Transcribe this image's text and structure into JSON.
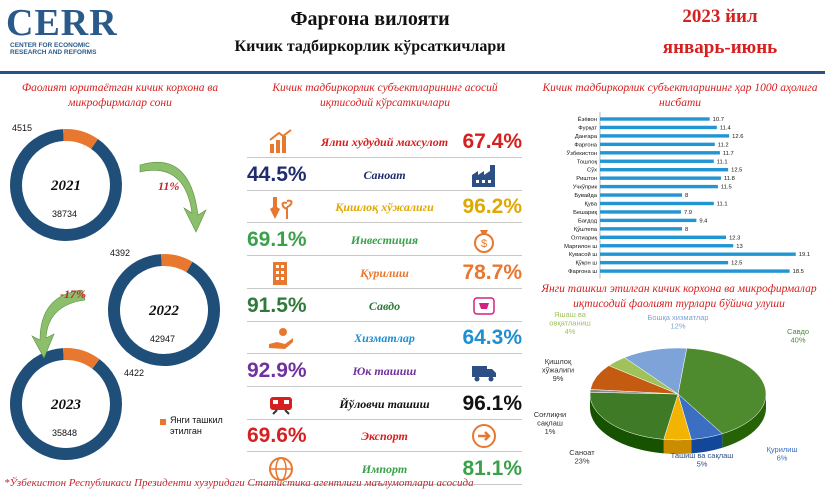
{
  "header": {
    "logo_word": "CERR",
    "logo_sub_lines": [
      "CENTER FOR ECONOMIC",
      "RESEARCH AND REFORMS"
    ],
    "title": "Фарғона вилояти",
    "subtitle": "Кичик тадбиркорлик кўрсаткичлари",
    "year": "2023 йил",
    "period": "январь-июнь"
  },
  "left_panel": {
    "title": "Фаолият юритаётган кичик корхона ва микрофирмалар сони",
    "legend_label": "Янги ташкил этилган",
    "colors": {
      "ring": "#1f4e79",
      "new": "#e8782f"
    }
  },
  "middle_panel": {
    "title": "Кичик тадбиркорлик субъектларининг асосий иқтисодий кўрсаткичлари",
    "rows": [
      {
        "left_value": "",
        "name": "Ялпи худудий махсулот",
        "right_value": "67.4%",
        "name_color": "#d62020",
        "value_color": "#d62020",
        "left_icon": "bar-growth-icon",
        "right_icon": ""
      },
      {
        "left_value": "44.5%",
        "name": "Саноат",
        "right_value": "",
        "name_color": "#1f2d6e",
        "value_color": "#1f2d6e",
        "left_icon": "",
        "right_icon": "factory-icon"
      },
      {
        "left_value": "",
        "name": "Қишлоқ хўжалиги",
        "right_value": "96.2%",
        "name_color": "#e0a800",
        "value_color": "#e0a800",
        "left_icon": "shovel-plant-icon",
        "right_icon": ""
      },
      {
        "left_value": "69.1%",
        "name": "Инвестиция",
        "right_value": "",
        "name_color": "#3aa14a",
        "value_color": "#3aa14a",
        "left_icon": "",
        "right_icon": "money-bag-icon"
      },
      {
        "left_value": "",
        "name": "Қурилиш",
        "right_value": "78.7%",
        "name_color": "#e8782f",
        "value_color": "#e8782f",
        "left_icon": "building-icon",
        "right_icon": ""
      },
      {
        "left_value": "91.5%",
        "name": "Савдо",
        "right_value": "",
        "name_color": "#2f7a3a",
        "value_color": "#2f7a3a",
        "left_icon": "",
        "right_icon": "cart-icon"
      },
      {
        "left_value": "",
        "name": "Хизматлар",
        "right_value": "64.3%",
        "name_color": "#1f8fd0",
        "value_color": "#1f8fd0",
        "left_icon": "service-hand-icon",
        "right_icon": ""
      },
      {
        "left_value": "92.9%",
        "name": "Юк ташиш",
        "right_value": "",
        "name_color": "#7030a0",
        "value_color": "#7030a0",
        "left_icon": "",
        "right_icon": "truck-icon"
      },
      {
        "left_value": "",
        "name": "Йўловчи ташиш",
        "right_value": "96.1%",
        "name_color": "#111111",
        "value_color": "#111111",
        "left_icon": "train-icon",
        "right_icon": ""
      },
      {
        "left_value": "69.6%",
        "name": "Экспорт",
        "right_value": "",
        "name_color": "#d62020",
        "value_color": "#d62020",
        "left_icon": "",
        "right_icon": "export-arrow-icon"
      },
      {
        "left_value": "",
        "name": "Импорт",
        "right_value": "81.1%",
        "name_color": "#3aa14a",
        "value_color": "#3aa14a",
        "left_icon": "globe-icon",
        "right_icon": ""
      }
    ]
  },
  "right_top": {
    "title": "Кичик тадбиркорлик субъектларининг ҳар 1000 аҳолига нисбати",
    "bar_color": "#2196d3"
  },
  "right_bottom": {
    "title": "Янги ташкил этилган кичик корхона ва микрофирмалар иқтисодий фаолият турлари бўйича улуши"
  },
  "footer": "*Ўзбекистон Республикаси Президенти хузуридаги Статистика агентлиги маълумотлари асосида",
  "chart_data": [
    {
      "type": "donut",
      "title": "Фаолият юритаётган кичик корхона ва микрофирмалар сони",
      "series": [
        {
          "year": "2021",
          "total": 38734,
          "new": 4515
        },
        {
          "year": "2022",
          "total": 42947,
          "new": 4392
        },
        {
          "year": "2023",
          "total": 35848,
          "new": 4422
        }
      ],
      "changes": [
        "11%",
        "-17%"
      ]
    },
    {
      "type": "bar",
      "orientation": "horizontal",
      "title": "Кичик тадбиркорлик субъектларининг ҳар 1000 аҳолига нисбати",
      "categories": [
        "Ёзёвон",
        "Фурқат",
        "Данғара",
        "Фарғона",
        "Ўзбекистон",
        "Тошлоқ",
        "Сўх",
        "Риштон",
        "Учкўприк",
        "Бувайда",
        "Қува",
        "Бешариқ",
        "Бағдод",
        "Қўштепа",
        "Олтиариқ",
        "Марғилон ш",
        "Кувасой ш",
        "Қўқон ш",
        "Фарғона ш"
      ],
      "values": [
        10.7,
        11.4,
        12.6,
        11.2,
        11.7,
        11.1,
        12.5,
        11.8,
        11.5,
        8,
        11.1,
        7.9,
        9.4,
        8,
        12.3,
        13,
        19.1,
        12.5,
        18.5
      ]
    },
    {
      "type": "pie",
      "title": "Янги ташкил этилган кичик корхона ва микрофирмалар иқтисодий фаолият турлари бўйича улуши",
      "slices": [
        {
          "label": "Савдо",
          "value": 40,
          "pct": "40%",
          "color": "#4e8a2e"
        },
        {
          "label": "Қурилиш",
          "value": 6,
          "pct": "6%",
          "color": "#3b6fc2"
        },
        {
          "label": "Ташиш ва сақлаш",
          "value": 5,
          "pct": "5%",
          "color": "#f2b400"
        },
        {
          "label": "Саноат",
          "value": 23,
          "pct": "23%",
          "color": "#3f7a26"
        },
        {
          "label": "Соғлиқни сақлаш",
          "value": 1,
          "pct": "1%",
          "color": "#8a8a8a"
        },
        {
          "label": "Қишлоқ хўжалиги",
          "value": 9,
          "pct": "9%",
          "color": "#c55a11"
        },
        {
          "label": "Яшаш ва овқатланиш",
          "value": 4,
          "pct": "4%",
          "color": "#9fc35a"
        },
        {
          "label": "Бошқа хизматлар",
          "value": 12,
          "pct": "12%",
          "color": "#7da3d8"
        }
      ]
    }
  ]
}
